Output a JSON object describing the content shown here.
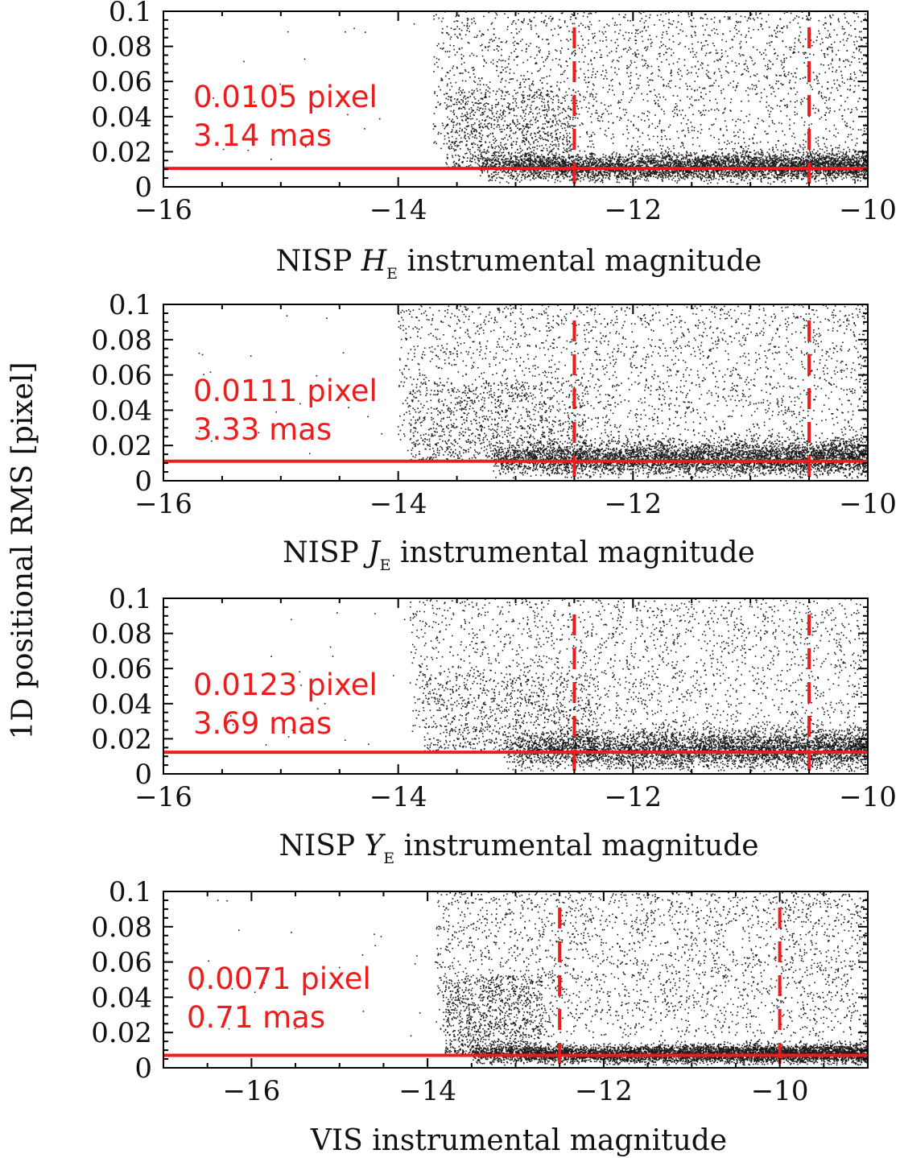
{
  "figure": {
    "ylabel": "1D positional RMS [pixel]"
  },
  "chart_data": [
    {
      "type": "scatter",
      "xlabel": {
        "prefix": "NISP ",
        "italic": "H",
        "subscript": "E",
        "suffix": " instrumental magnitude"
      },
      "xlim": [
        -16,
        -10
      ],
      "ylim": [
        0,
        0.1
      ],
      "xticks": [
        "−16",
        "−14",
        "−12",
        "−10"
      ],
      "xtick_values": [
        -16,
        -14,
        -12,
        -10
      ],
      "yticks": [
        "0",
        "0.02",
        "0.04",
        "0.06",
        "0.08",
        "0.1"
      ],
      "ytick_values": [
        0,
        0.02,
        0.04,
        0.06,
        0.08,
        0.1
      ],
      "hline": 0.0105,
      "vlines": [
        -12.5,
        -10.5
      ],
      "annotation": [
        "0.0105 pixel",
        "3.14 mas"
      ],
      "distribution": {
        "onset": -13.6,
        "knee": -13.3,
        "floor": 0.0105,
        "spread": 0.006,
        "rise": 0.004,
        "density": 1.0,
        "seed": 11
      }
    },
    {
      "type": "scatter",
      "xlabel": {
        "prefix": "NISP ",
        "italic": "J",
        "subscript": "E",
        "suffix": " instrumental magnitude"
      },
      "xlim": [
        -16,
        -10
      ],
      "ylim": [
        0,
        0.1
      ],
      "xticks": [
        "−16",
        "−14",
        "−12",
        "−10"
      ],
      "xtick_values": [
        -16,
        -14,
        -12,
        -10
      ],
      "yticks": [
        "0",
        "0.02",
        "0.04",
        "0.06",
        "0.08",
        "0.1"
      ],
      "ytick_values": [
        0,
        0.02,
        0.04,
        0.06,
        0.08,
        0.1
      ],
      "hline": 0.0111,
      "vlines": [
        -12.5,
        -10.5
      ],
      "annotation": [
        "0.0111 pixel",
        "3.33 mas"
      ],
      "distribution": {
        "onset": -13.9,
        "knee": -13.2,
        "floor": 0.0111,
        "spread": 0.007,
        "rise": 0.006,
        "density": 1.0,
        "seed": 23
      }
    },
    {
      "type": "scatter",
      "xlabel": {
        "prefix": "NISP ",
        "italic": "Y",
        "subscript": "E",
        "suffix": " instrumental magnitude"
      },
      "xlim": [
        -16,
        -10
      ],
      "ylim": [
        0,
        0.1
      ],
      "xticks": [
        "−16",
        "−14",
        "−12",
        "−10"
      ],
      "xtick_values": [
        -16,
        -14,
        -12,
        -10
      ],
      "yticks": [
        "0",
        "0.02",
        "0.04",
        "0.06",
        "0.08",
        "0.1"
      ],
      "ytick_values": [
        0,
        0.02,
        0.04,
        0.06,
        0.08,
        0.1
      ],
      "hline": 0.0123,
      "vlines": [
        -12.5,
        -10.5
      ],
      "annotation": [
        "0.0123 pixel",
        "3.69 mas"
      ],
      "distribution": {
        "onset": -13.8,
        "knee": -13.1,
        "floor": 0.0123,
        "spread": 0.008,
        "rise": 0.006,
        "density": 0.9,
        "seed": 37
      }
    },
    {
      "type": "scatter",
      "xlabel": {
        "prefix": "VIS instrumental magnitude",
        "italic": "",
        "subscript": "",
        "suffix": ""
      },
      "xlim": [
        -17,
        -9
      ],
      "ylim": [
        0,
        0.1
      ],
      "xticks": [
        "−16",
        "−14",
        "−12",
        "−10"
      ],
      "xtick_values": [
        -16,
        -14,
        -12,
        -10
      ],
      "yticks": [
        "0",
        "0.02",
        "0.04",
        "0.06",
        "0.08",
        "0.1"
      ],
      "ytick_values": [
        0,
        0.02,
        0.04,
        0.06,
        0.08,
        0.1
      ],
      "hline": 0.0071,
      "vlines": [
        -12.5,
        -10
      ],
      "annotation": [
        "0.0071 pixel",
        "0.71 mas"
      ],
      "distribution": {
        "onset": -13.8,
        "knee": -13.5,
        "floor": 0.0071,
        "spread": 0.004,
        "rise": 0.003,
        "density": 1.1,
        "seed": 53
      }
    }
  ]
}
